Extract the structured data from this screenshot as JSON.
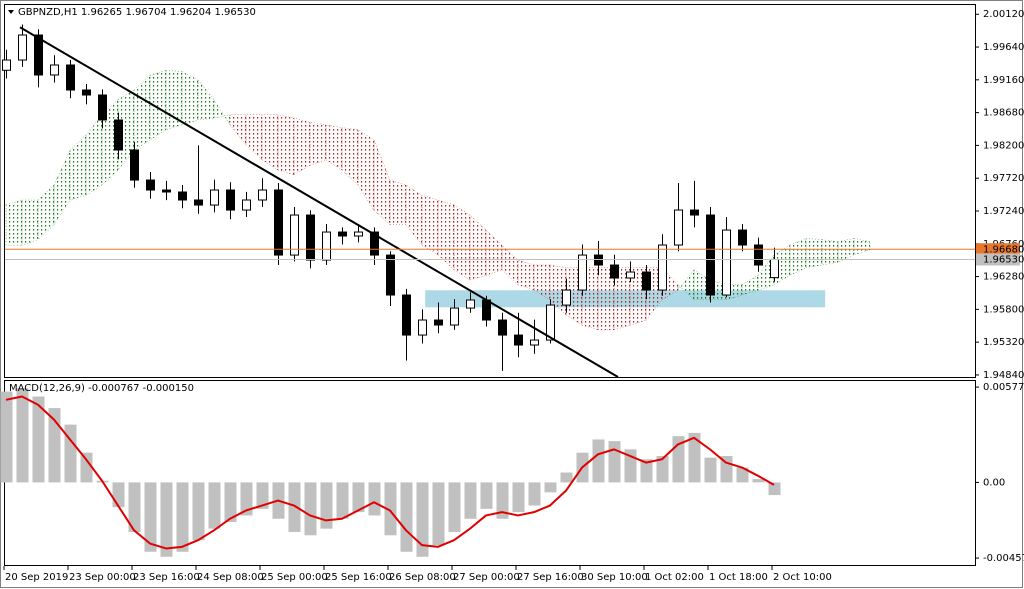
{
  "chart_data": [
    {
      "type": "candlestick",
      "title": "GBPNZD,H1  1.96265 1.96704 1.96204 1.96530",
      "ohlc": [
        [
          1.993,
          1.996,
          1.9918,
          1.9945
        ],
        [
          1.9945,
          1.9997,
          1.9935,
          1.99816
        ],
        [
          1.99816,
          1.999,
          1.9905,
          1.99231
        ],
        [
          1.99231,
          1.9952,
          1.9912,
          1.99377
        ],
        [
          1.99377,
          1.9945,
          1.9889,
          1.99011
        ],
        [
          1.99011,
          1.991,
          1.988,
          1.98938
        ],
        [
          1.98938,
          1.9902,
          1.9845,
          1.98572
        ],
        [
          1.98572,
          1.9868,
          1.98,
          1.98133
        ],
        [
          1.98133,
          1.9825,
          1.9758,
          1.97693
        ],
        [
          1.97693,
          1.9781,
          1.9742,
          1.97547
        ],
        [
          1.97547,
          1.9768,
          1.974,
          1.97518
        ],
        [
          1.97518,
          1.9762,
          1.9728,
          1.97401
        ],
        [
          1.97401,
          1.982,
          1.972,
          1.97327
        ],
        [
          1.97327,
          1.977,
          1.9722,
          1.97547
        ],
        [
          1.97547,
          1.9766,
          1.9712,
          1.97254
        ],
        [
          1.97254,
          1.9752,
          1.9715,
          1.97401
        ],
        [
          1.97401,
          1.9772,
          1.973,
          1.97547
        ],
        [
          1.97547,
          1.9765,
          1.9645,
          1.96595
        ],
        [
          1.96595,
          1.973,
          1.965,
          1.97181
        ],
        [
          1.97181,
          1.9725,
          1.964,
          1.96522
        ],
        [
          1.96522,
          1.9705,
          1.9645,
          1.96932
        ],
        [
          1.96932,
          1.97,
          1.9675,
          1.96874
        ],
        [
          1.96874,
          1.9705,
          1.9678,
          1.96932
        ],
        [
          1.96932,
          1.97,
          1.9645,
          1.96595
        ],
        [
          1.96595,
          1.9665,
          1.9585,
          1.9601
        ],
        [
          1.9601,
          1.961,
          1.9505,
          1.95424
        ],
        [
          1.95424,
          1.958,
          1.953,
          1.95644
        ],
        [
          1.95644,
          1.959,
          1.9545,
          1.95571
        ],
        [
          1.95571,
          1.9595,
          1.955,
          1.95819
        ],
        [
          1.95819,
          1.9605,
          1.9575,
          1.95937
        ],
        [
          1.95937,
          1.96,
          1.9555,
          1.95644
        ],
        [
          1.95644,
          1.9575,
          1.949,
          1.95424
        ],
        [
          1.95424,
          1.9575,
          1.951,
          1.95278
        ],
        [
          1.95278,
          1.9565,
          1.9515,
          1.95351
        ],
        [
          1.95351,
          1.9595,
          1.953,
          1.95863
        ],
        [
          1.95863,
          1.9625,
          1.9575,
          1.96083
        ],
        [
          1.96083,
          1.9675,
          1.96,
          1.96595
        ],
        [
          1.96595,
          1.968,
          1.963,
          1.96449
        ],
        [
          1.96449,
          1.966,
          1.9615,
          1.96259
        ],
        [
          1.96259,
          1.965,
          1.962,
          1.96347
        ],
        [
          1.96347,
          1.9645,
          1.9595,
          1.96083
        ],
        [
          1.96083,
          1.969,
          1.96,
          1.96742
        ],
        [
          1.96742,
          1.9765,
          1.9665,
          1.97254
        ],
        [
          1.97254,
          1.9768,
          1.97,
          1.97181
        ],
        [
          1.97181,
          1.973,
          1.959,
          1.9601
        ],
        [
          1.9601,
          1.9715,
          1.9598,
          1.96961
        ],
        [
          1.96961,
          1.9705,
          1.9665,
          1.96742
        ],
        [
          1.96742,
          1.9685,
          1.9635,
          1.96449
        ],
        [
          1.96265,
          1.96704,
          1.96204,
          1.9653
        ]
      ],
      "span_a": [
        1.9733,
        1.974,
        1.974,
        1.9762,
        1.9813,
        1.9835,
        1.9865,
        1.9887,
        1.9901,
        1.9923,
        1.993,
        1.9928,
        1.9916,
        1.9887,
        1.985,
        1.9821,
        1.9799,
        1.9784,
        1.9777,
        1.9791,
        1.9799,
        1.9784,
        1.9762,
        1.9725,
        1.9704,
        1.9704,
        1.9674,
        1.966,
        1.9638,
        1.9623,
        1.963,
        1.9638,
        1.9616,
        1.9608,
        1.9594,
        1.9572,
        1.9557,
        1.955,
        1.955,
        1.9557,
        1.9564,
        1.9594,
        1.9608,
        1.9638,
        1.9623,
        1.9616,
        1.9616,
        1.963,
        1.966,
        1.9674,
        1.9684,
        1.9682,
        1.9679,
        1.9684,
        1.9679
      ],
      "span_b": [
        1.9674,
        1.9674,
        1.9682,
        1.9704,
        1.974,
        1.9747,
        1.9762,
        1.9784,
        1.9813,
        1.9828,
        1.9843,
        1.985,
        1.9857,
        1.986,
        1.9865,
        1.9865,
        1.9865,
        1.9865,
        1.986,
        1.9854,
        1.985,
        1.9846,
        1.9843,
        1.9828,
        1.9769,
        1.9762,
        1.9747,
        1.974,
        1.9733,
        1.9718,
        1.9696,
        1.9674,
        1.9652,
        1.9645,
        1.9645,
        1.9641,
        1.9641,
        1.9641,
        1.9641,
        1.9641,
        1.9641,
        1.9641,
        1.9616,
        1.9594,
        1.9594,
        1.9594,
        1.9601,
        1.9608,
        1.9616,
        1.963,
        1.9641,
        1.9645,
        1.9649,
        1.966,
        1.9667
      ],
      "cloud_colors": [
        "#1e7b1e",
        "#b22222"
      ],
      "trendline": {
        "x": [
          0.875,
          38.25
        ],
        "y": [
          1.9993,
          1.9481
        ],
        "color": "#000000"
      },
      "zone": {
        "x": [
          26.2,
          51.2
        ],
        "y": [
          1.9583,
          1.9608
        ],
        "color": "#add8e6"
      },
      "levels": [
        {
          "value": 1.9668,
          "label": "1.96680",
          "color": "#e8772e"
        },
        {
          "value": 1.9653,
          "label": "1.96530",
          "color": "#c0c0c0"
        }
      ],
      "ylim": [
        1.9481,
        2.0027
      ],
      "yticks": [
        {
          "value": 2.0012,
          "label": "2.00120"
        },
        {
          "value": 1.9964,
          "label": "1.99640"
        },
        {
          "value": 1.9916,
          "label": "1.99160"
        },
        {
          "value": 1.9868,
          "label": "1.98680"
        },
        {
          "value": 1.982,
          "label": "1.98200"
        },
        {
          "value": 1.9772,
          "label": "1.97720"
        },
        {
          "value": 1.9724,
          "label": "1.97240"
        },
        {
          "value": 1.9676,
          "label": "1.96760"
        },
        {
          "value": 1.9628,
          "label": "1.96280"
        },
        {
          "value": 1.958,
          "label": "1.95800"
        },
        {
          "value": 1.9532,
          "label": "1.95320"
        },
        {
          "value": 1.9484,
          "label": "1.94840"
        }
      ]
    },
    {
      "type": "macd",
      "title": "MACD(12,26,9) -0.000767 -0.000150",
      "categories": [
        "20 Sep 2019",
        null,
        null,
        null,
        "23 Sep 00:00",
        null,
        null,
        null,
        "23 Sep 16:00",
        null,
        null,
        null,
        "24 Sep 08:00",
        null,
        null,
        null,
        "25 Sep 00:00",
        null,
        null,
        null,
        "25 Sep 16:00",
        null,
        null,
        null,
        "26 Sep 08:00",
        null,
        null,
        null,
        "27 Sep 00:00",
        null,
        null,
        null,
        "27 Sep 16:00",
        null,
        null,
        null,
        "30 Sep 10:00",
        null,
        null,
        null,
        "1 Oct 02:00",
        null,
        null,
        null,
        "1 Oct 18:00",
        null,
        null,
        null,
        "2 Oct 10:00"
      ],
      "histogram": [
        0.0055,
        0.0057,
        0.0052,
        0.0045,
        0.0035,
        0.0018,
        0.0001,
        -0.0015,
        -0.003,
        -0.0042,
        -0.0045,
        -0.0042,
        -0.0035,
        -0.0028,
        -0.0024,
        -0.002,
        -0.0016,
        -0.0022,
        -0.003,
        -0.0032,
        -0.0028,
        -0.0022,
        -0.0018,
        -0.002,
        -0.0032,
        -0.0042,
        -0.0045,
        -0.0038,
        -0.003,
        -0.0022,
        -0.0016,
        -0.0022,
        -0.0018,
        -0.0014,
        -0.0006,
        0.0006,
        0.0018,
        0.0026,
        0.0025,
        0.002,
        0.0014,
        0.0016,
        0.0028,
        0.003,
        0.0015,
        0.0016,
        0.0009,
        0.0002,
        -0.000767
      ],
      "signal": [
        0.005,
        0.0052,
        0.0047,
        0.0038,
        0.0026,
        0.0014,
        0.0001,
        -0.0014,
        -0.0029,
        -0.0037,
        -0.004,
        -0.0039,
        -0.0035,
        -0.0029,
        -0.0022,
        -0.0017,
        -0.0014,
        -0.0011,
        -0.0014,
        -0.002,
        -0.0023,
        -0.0022,
        -0.0017,
        -0.0012,
        -0.0017,
        -0.0029,
        -0.0038,
        -0.0039,
        -0.0035,
        -0.0028,
        -0.002,
        -0.0018,
        -0.002,
        -0.0018,
        -0.0014,
        -0.0005,
        0.0009,
        0.0017,
        0.002,
        0.0016,
        0.0012,
        0.0014,
        0.0023,
        0.0027,
        0.002,
        0.0012,
        0.0009,
        0.0004,
        -0.00015
      ],
      "histogram_color": "#c0c0c0",
      "signal_color": "#e00000",
      "ylim": [
        -0.005,
        0.0062
      ],
      "yticks": [
        0.005771,
        {
          "value": 0,
          "label": "0.00"
        },
        -0.004578
      ]
    }
  ]
}
